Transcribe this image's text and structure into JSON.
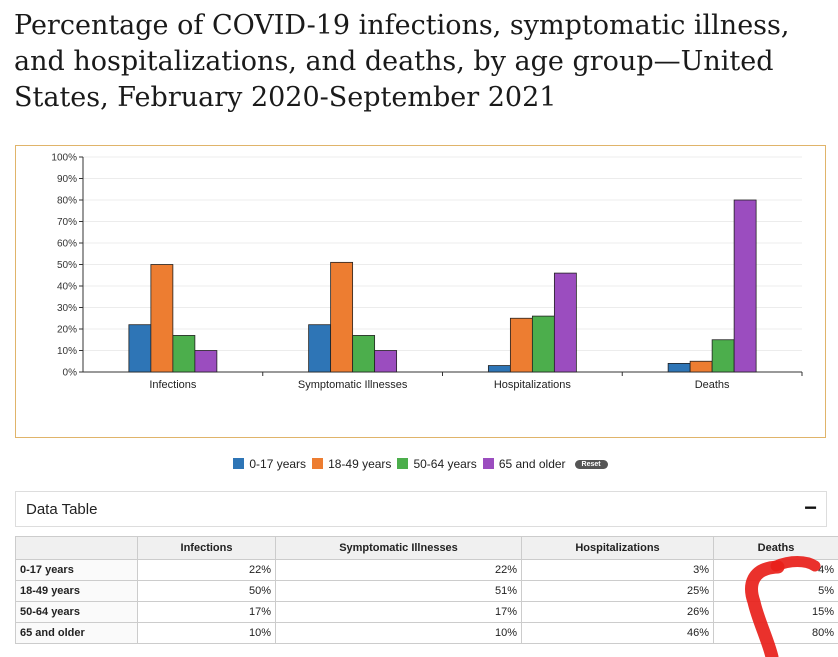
{
  "title": "Percentage of COVID-19 infections, symptomatic illness, and hospitalizations, and deaths, by age group—United States, February 2020-September 2021",
  "chart_data": {
    "type": "bar",
    "categories": [
      "Infections",
      "Symptomatic Illnesses",
      "Hospitalizations",
      "Deaths"
    ],
    "series": [
      {
        "name": "0-17 years",
        "color": "#2e75b6",
        "values": [
          22,
          22,
          3,
          4
        ]
      },
      {
        "name": "18-49 years",
        "color": "#ed7d31",
        "values": [
          50,
          51,
          25,
          5
        ]
      },
      {
        "name": "50-64 years",
        "color": "#4cae4c",
        "values": [
          17,
          17,
          26,
          15
        ]
      },
      {
        "name": "65 and older",
        "color": "#9b4dbf",
        "values": [
          10,
          10,
          46,
          80
        ]
      }
    ],
    "ylim": [
      0,
      100
    ],
    "yticks": [
      "0%",
      "10%",
      "20%",
      "30%",
      "40%",
      "50%",
      "60%",
      "70%",
      "80%",
      "90%",
      "100%"
    ],
    "legend_position": "bottom",
    "grid": true
  },
  "legend": {
    "reset_label": "Reset"
  },
  "data_table": {
    "title": "Data Table",
    "collapse_icon": "−",
    "headers": [
      "",
      "Infections",
      "Symptomatic Illnesses",
      "Hospitalizations",
      "Deaths"
    ],
    "rows": [
      {
        "label": "0-17 years",
        "values": [
          "22%",
          "22%",
          "3%",
          "4%"
        ]
      },
      {
        "label": "18-49 years",
        "values": [
          "50%",
          "51%",
          "25%",
          "5%"
        ]
      },
      {
        "label": "50-64 years",
        "values": [
          "17%",
          "17%",
          "26%",
          "15%"
        ]
      },
      {
        "label": "65 and older",
        "values": [
          "10%",
          "10%",
          "46%",
          "80%"
        ]
      }
    ]
  }
}
